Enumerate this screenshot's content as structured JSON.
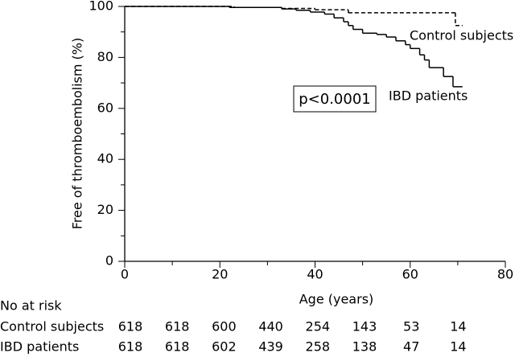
{
  "chart_data": {
    "type": "step",
    "ylabel": "Free of thromboembolism (%)",
    "xlabel": "Age (years)",
    "xlim": [
      0,
      80
    ],
    "xticks": [
      0,
      20,
      40,
      60,
      80
    ],
    "xticks_minor": [
      10,
      30,
      50,
      70
    ],
    "ylim": [
      0,
      100
    ],
    "yticks": [
      0,
      20,
      40,
      60,
      80,
      100
    ],
    "yticks_minor": [
      10,
      30,
      50,
      70,
      90
    ],
    "grid": false,
    "series": [
      {
        "name": "Control subjects",
        "color": "#000000",
        "dash": true,
        "x": [
          0,
          23,
          33,
          40,
          47,
          69.5,
          71
        ],
        "values": [
          100,
          99.6,
          99.2,
          98.7,
          97.5,
          92.5,
          92.5
        ]
      },
      {
        "name": "IBD patients",
        "color": "#000000",
        "dash": false,
        "x": [
          0,
          22,
          33,
          36,
          39,
          42,
          44,
          46,
          47,
          48,
          50,
          53,
          55,
          57,
          59,
          60,
          62,
          63,
          64,
          67,
          69,
          71
        ],
        "values": [
          100,
          99.6,
          99,
          98.5,
          97.8,
          97,
          95.5,
          94,
          92.5,
          91,
          89.5,
          89,
          88,
          86.5,
          85,
          83.5,
          81,
          79,
          76,
          72.5,
          68.5,
          68.5
        ]
      }
    ],
    "annotation": "p<0.0001",
    "risk_table": {
      "title": "No at risk",
      "rows": [
        {
          "name": "Control subjects",
          "values": [
            618,
            618,
            600,
            440,
            254,
            143,
            53,
            14
          ]
        },
        {
          "name": "IBD patients",
          "values": [
            618,
            618,
            602,
            439,
            258,
            138,
            47,
            14
          ]
        }
      ]
    }
  }
}
